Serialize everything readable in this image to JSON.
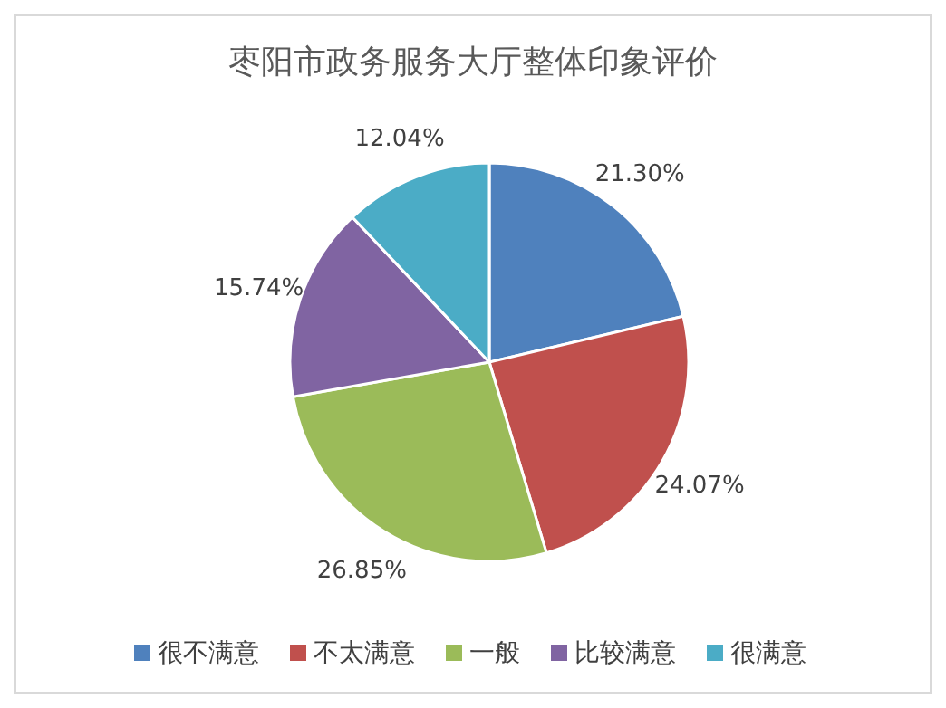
{
  "chart_data": {
    "type": "pie",
    "title": "枣阳市政务服务大厅整体印象评价",
    "categories": [
      "很不满意",
      "不太满意",
      "一般",
      "比较满意",
      "很满意"
    ],
    "values": [
      21.3,
      24.07,
      26.85,
      15.74,
      12.04
    ],
    "value_labels": [
      "21.30%",
      "24.07%",
      "26.85%",
      "15.74%",
      "12.04%"
    ],
    "colors": [
      "#4f81bd",
      "#c0504d",
      "#9bbb59",
      "#8064a2",
      "#4bacc6"
    ],
    "legend": "bottom"
  }
}
